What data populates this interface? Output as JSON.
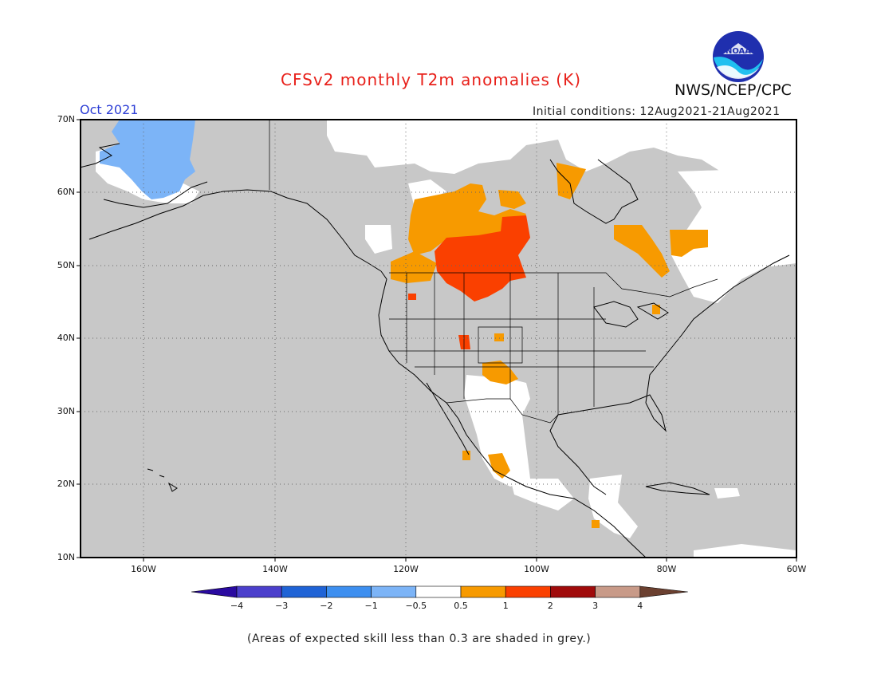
{
  "title": "CFSv2 monthly T2m anomalies (K)",
  "agency": "NWS/NCEP/CPC",
  "logo_text": "NOAA",
  "period": "Oct 2021",
  "initial_conditions": "Initial conditions: 12Aug2021-21Aug2021",
  "lat_labels": [
    "70N",
    "60N",
    "50N",
    "40N",
    "30N",
    "20N",
    "10N"
  ],
  "lon_labels": [
    "160W",
    "140W",
    "120W",
    "100W",
    "80W",
    "60W"
  ],
  "colorbar": {
    "labels": [
      "−4",
      "−3",
      "−2",
      "−1",
      "−0.5",
      "0.5",
      "1",
      "2",
      "3",
      "4"
    ],
    "colors": [
      "#2a0aa0",
      "#4b3fcc",
      "#1f63d6",
      "#3d8ff0",
      "#7cb4f7",
      "#ffffff",
      "#f79a00",
      "#fa4000",
      "#a00b0b",
      "#c89a88",
      "#6b4030"
    ],
    "levels": [
      -4,
      -3,
      -2,
      -1,
      -0.5,
      0.5,
      1,
      2,
      3,
      4
    ]
  },
  "footnote": "(Areas of expected skill less than 0.3 are shaded in grey.)",
  "colors": {
    "low_skill_grey": "#c8c8c8",
    "near_normal": "#ffffff",
    "anom_0_5_to_1": "#f79a00",
    "anom_1_to_2": "#fa4000",
    "anom_neg_0_5_to_neg_1": "#7cb4f7"
  }
}
